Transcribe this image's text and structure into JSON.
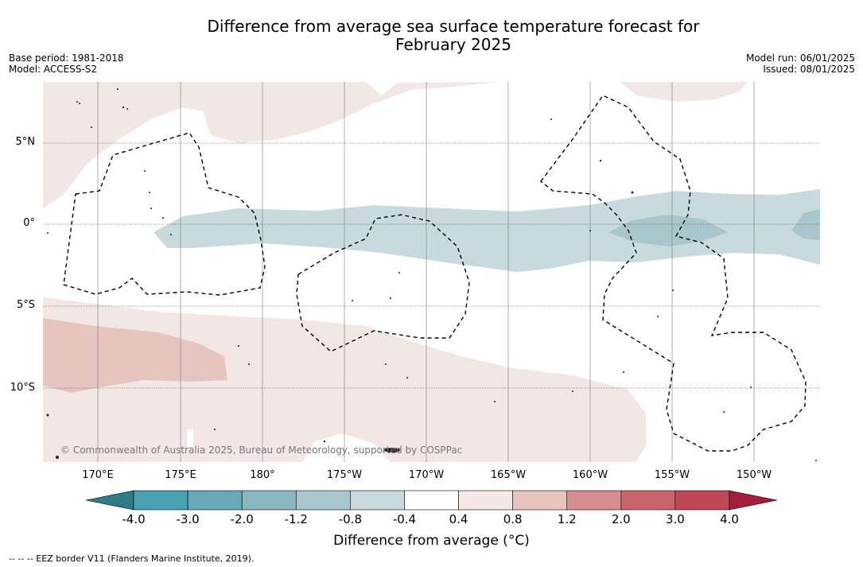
{
  "title_line1": "Difference from average sea surface temperature forecast for",
  "title_line2": "February 2025",
  "meta_left": {
    "base_period": "Base period: 1981-2018",
    "model": "Model: ACCESS-S2"
  },
  "meta_right": {
    "model_run": "Model run: 06/01/2025",
    "issued": "Issued: 08/01/2025"
  },
  "lat_labels": [
    "5°N",
    "0°",
    "5°S",
    "10°S"
  ],
  "lon_labels": [
    "170°E",
    "175°E",
    "180°",
    "175°W",
    "170°W",
    "165°W",
    "160°W",
    "155°W",
    "150°W"
  ],
  "colorbar": {
    "ticks": [
      "-4.0",
      "-3.0",
      "-2.0",
      "-1.2",
      "-0.8",
      "-0.4",
      "0.4",
      "0.8",
      "1.2",
      "2.0",
      "3.0",
      "4.0"
    ],
    "colors": [
      "#2f7d84",
      "#49a0b0",
      "#69aab8",
      "#89b7bf",
      "#a8c6cb",
      "#c8dadd",
      "#ffffff",
      "#f5e8e6",
      "#e6c5c0",
      "#d58f93",
      "#c7646d",
      "#bf4858",
      "#a51d3c"
    ],
    "label": "Difference from average (",
    "label_unit": "°C)"
  },
  "copyright": "© Commonwealth of Australia 2025, Bureau of Meteorology, supported by COSPPac",
  "footnote": "--  --  -- EEZ border V11 (Flanders Marine Institute, 2019)."
}
